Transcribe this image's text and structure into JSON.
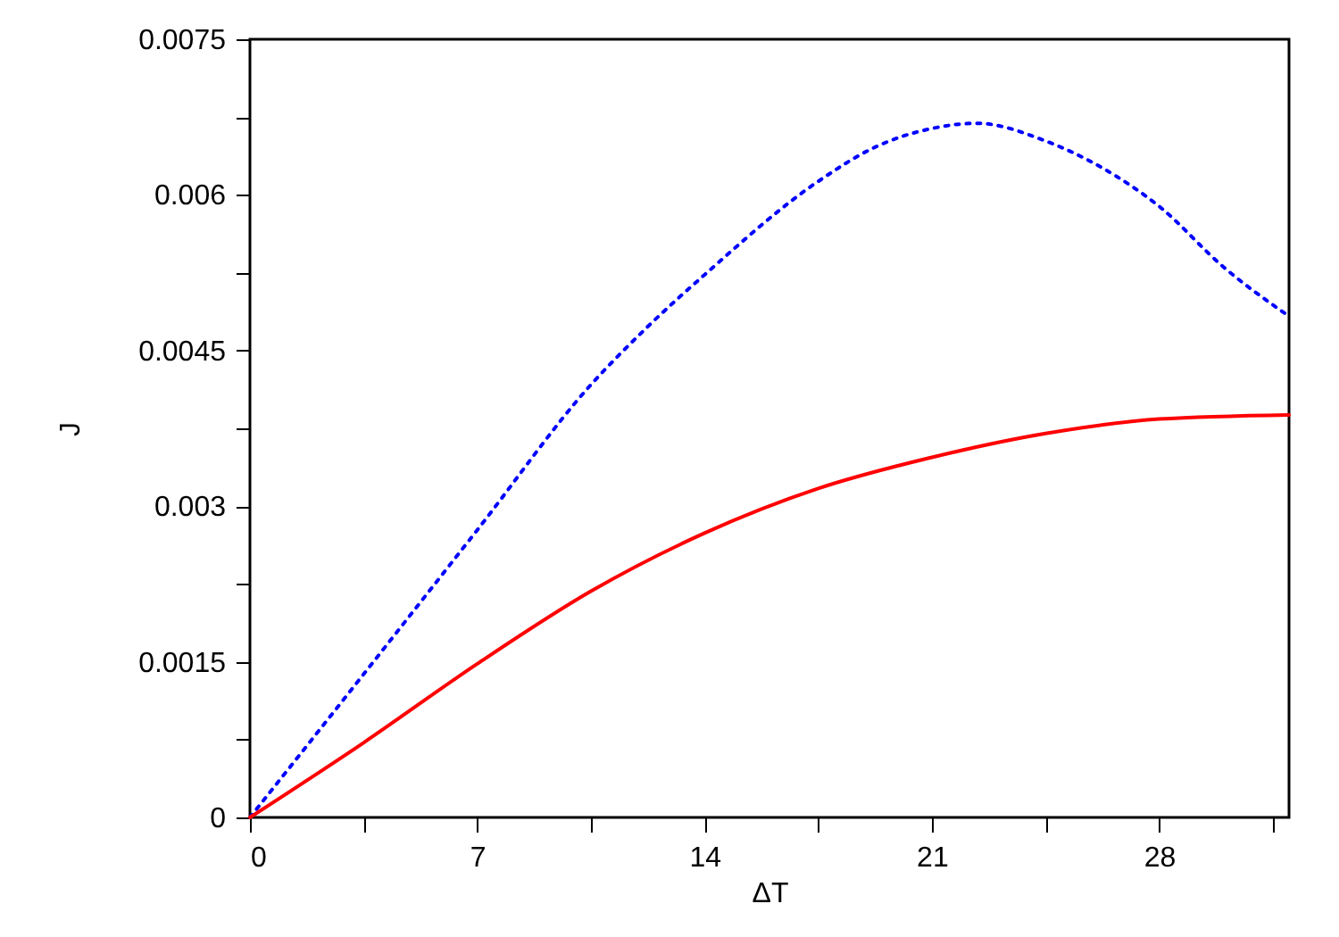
{
  "chart_data": {
    "type": "line",
    "xlabel": "ΔT",
    "ylabel": "J",
    "xlim": [
      0,
      32
    ],
    "xticks": [
      0,
      {
        "value": 3.5,
        "label": null
      },
      7,
      {
        "value": 10.5,
        "label": null
      },
      14,
      {
        "value": 17.5,
        "label": null
      },
      21,
      {
        "value": 24.5,
        "label": null
      },
      28,
      {
        "value": 31.5,
        "label": null
      }
    ],
    "ylim": [
      0,
      0.0075
    ],
    "yticks": [
      0,
      {
        "value": 0.00075,
        "label": null
      },
      0.0015,
      {
        "value": 0.00225,
        "label": null
      },
      0.003,
      {
        "value": 0.00375,
        "label": null
      },
      0.0045,
      {
        "value": 0.00525,
        "label": null
      },
      0.006,
      {
        "value": 0.00675,
        "label": null
      },
      0.0075
    ],
    "series": [
      {
        "color": "#0000ff",
        "line_style": "dotted",
        "x": [
          0,
          3.5,
          7,
          10.5,
          12.25,
          14,
          17.5,
          19.25,
          21,
          22.4,
          24.5,
          26.25,
          28,
          30,
          32
        ],
        "values": [
          0,
          0.00138,
          0.00277,
          0.00417,
          0.00473,
          0.00523,
          0.00613,
          0.00646,
          0.00664,
          0.00669,
          0.00652,
          0.00626,
          0.00589,
          0.0053,
          0.00483
        ]
      },
      {
        "color": "#ff0000",
        "line_style": "solid",
        "x": [
          0,
          3.5,
          7,
          10.5,
          14,
          17.5,
          21,
          24.5,
          28,
          32
        ],
        "values": [
          0,
          0.00072,
          0.00148,
          0.00218,
          0.00274,
          0.00317,
          0.00347,
          0.0037,
          0.00384,
          0.00388
        ]
      }
    ]
  }
}
